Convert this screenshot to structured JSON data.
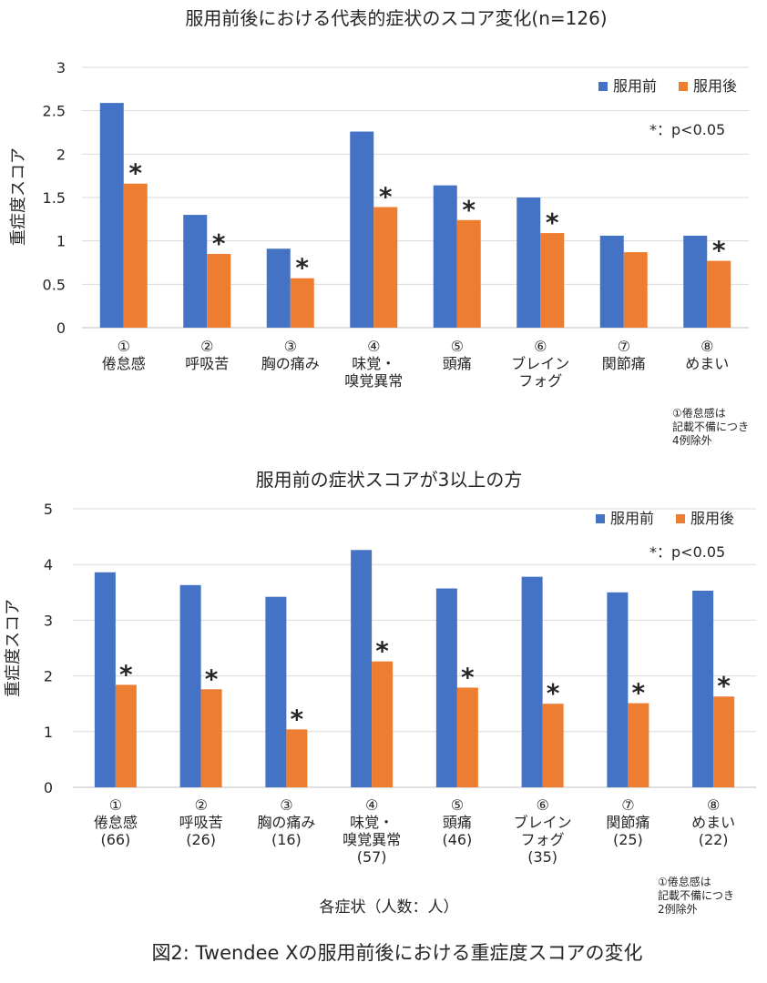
{
  "figure_caption": "図2: Twendee Xの服用前後における重症度スコアの変化",
  "colors": {
    "before": "#4472C4",
    "after": "#ED7D31",
    "grid": "#D9D9D9"
  },
  "chart_data": [
    {
      "type": "bar",
      "title": "服用前後における代表的症状のスコア変化(n=126)",
      "ylabel": "重症度スコア",
      "xlabel": "",
      "ylim": [
        0,
        3
      ],
      "yticks": [
        "0",
        "0.5",
        "1",
        "1.5",
        "2",
        "2.5",
        "3"
      ],
      "ytick_values": [
        0,
        0.5,
        1,
        1.5,
        2,
        2.5,
        3
      ],
      "legend": [
        "服用前",
        "服用後"
      ],
      "legend_position": "top-right",
      "significance_note": "*：p<0.05",
      "categories": [
        [
          "①",
          "倦怠感"
        ],
        [
          "②",
          "呼吸苦"
        ],
        [
          "③",
          "胸の痛み"
        ],
        [
          "④",
          "味覚・",
          "嗅覚異常"
        ],
        [
          "⑤",
          "頭痛"
        ],
        [
          "⑥",
          "ブレイン",
          "フォグ"
        ],
        [
          "⑦",
          "関節痛"
        ],
        [
          "⑧",
          "めまい"
        ]
      ],
      "series": [
        {
          "name": "服用前",
          "values": [
            2.59,
            1.3,
            0.91,
            2.26,
            1.64,
            1.5,
            1.06,
            1.06
          ]
        },
        {
          "name": "服用後",
          "values": [
            1.66,
            0.85,
            0.57,
            1.39,
            1.24,
            1.09,
            0.87,
            0.77
          ]
        }
      ],
      "significant": [
        true,
        true,
        true,
        true,
        true,
        true,
        false,
        true
      ],
      "marker": "*",
      "footnote": [
        "①倦怠感は",
        "記載不備につき",
        "4例除外"
      ]
    },
    {
      "type": "bar",
      "title": "服用前の症状スコアが3以上の方",
      "ylabel": "重症度スコア",
      "xlabel": "各症状（人数：人）",
      "ylim": [
        0,
        5
      ],
      "yticks": [
        "0",
        "1",
        "2",
        "3",
        "4",
        "5"
      ],
      "ytick_values": [
        0,
        1,
        2,
        3,
        4,
        5
      ],
      "legend": [
        "服用前",
        "服用後"
      ],
      "legend_position": "top-right",
      "significance_note": "*：p<0.05",
      "categories": [
        [
          "①",
          "倦怠感",
          "(66)"
        ],
        [
          "②",
          "呼吸苦",
          "(26)"
        ],
        [
          "③",
          "胸の痛み",
          "(16)"
        ],
        [
          "④",
          "味覚・",
          "嗅覚異常",
          "(57)"
        ],
        [
          "⑤",
          "頭痛",
          "(46)"
        ],
        [
          "⑥",
          "ブレイン",
          "フォグ",
          "(35)"
        ],
        [
          "⑦",
          "関節痛",
          "(25)"
        ],
        [
          "⑧",
          "めまい",
          "(22)"
        ]
      ],
      "series": [
        {
          "name": "服用前",
          "values": [
            3.86,
            3.63,
            3.42,
            4.26,
            3.57,
            3.78,
            3.5,
            3.53
          ]
        },
        {
          "name": "服用後",
          "values": [
            1.84,
            1.76,
            1.04,
            2.26,
            1.79,
            1.5,
            1.51,
            1.63
          ]
        }
      ],
      "significant": [
        true,
        true,
        true,
        true,
        true,
        true,
        true,
        true
      ],
      "marker": "*",
      "footnote": [
        "①倦怠感は",
        "記載不備につき",
        "2例除外"
      ]
    }
  ]
}
